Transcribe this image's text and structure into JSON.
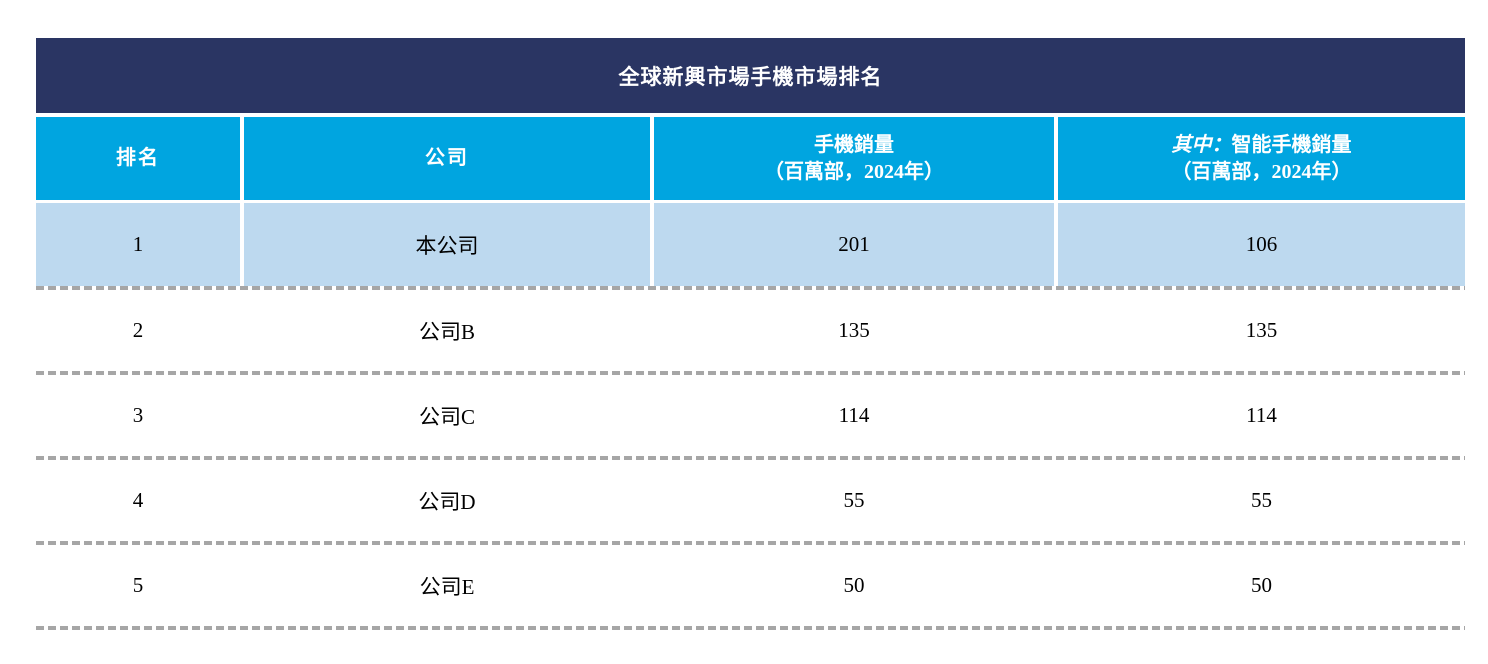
{
  "table": {
    "title": "全球新興市場手機市場排名",
    "header": {
      "columns": [
        {
          "title": "排名"
        },
        {
          "title": "公司"
        },
        {
          "title": "手機銷量",
          "subtitle": "（百萬部，2024年）"
        },
        {
          "prefix": "其中：",
          "title": "智能手機銷量",
          "subtitle": "（百萬部，2024年）"
        }
      ]
    },
    "rows": [
      {
        "rank": "1",
        "company": "本公司",
        "phone_sales": "201",
        "smartphone_sales": "106"
      },
      {
        "rank": "2",
        "company": "公司B",
        "phone_sales": "135",
        "smartphone_sales": "135"
      },
      {
        "rank": "3",
        "company": "公司C",
        "phone_sales": "114",
        "smartphone_sales": "114"
      },
      {
        "rank": "4",
        "company": "公司D",
        "phone_sales": "55",
        "smartphone_sales": "55"
      },
      {
        "rank": "5",
        "company": "公司E",
        "phone_sales": "50",
        "smartphone_sales": "50"
      }
    ],
    "colors": {
      "title_bar_bg": "#2A3563",
      "header_bg": "#00A5E0",
      "highlight_row_bg": "#BDD9EF",
      "dash_separator": "#A6A6A6",
      "header_text": "#FFFFFF",
      "body_text": "#000000"
    }
  }
}
